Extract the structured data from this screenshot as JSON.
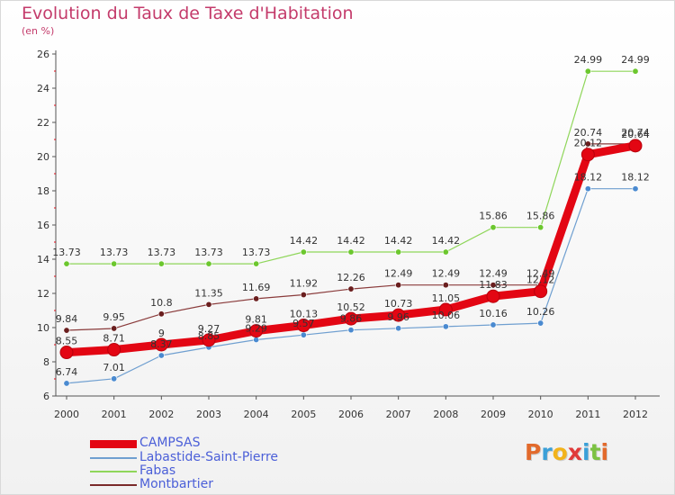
{
  "header": {
    "title": "Evolution du Taux de Taxe d'Habitation",
    "subtitle": "(en %)"
  },
  "logo": {
    "text": "Proxiti",
    "letters": [
      {
        "ch": "P",
        "color": "#e26a2c"
      },
      {
        "ch": "r",
        "color": "#3aa0d8"
      },
      {
        "ch": "o",
        "color": "#f2b31b"
      },
      {
        "ch": "x",
        "color": "#e03a3a"
      },
      {
        "ch": "i",
        "color": "#3aa0d8"
      },
      {
        "ch": "t",
        "color": "#7cc242"
      },
      {
        "ch": "i",
        "color": "#e26a2c"
      }
    ]
  },
  "chart_data": {
    "type": "line",
    "title": "Evolution du Taux de Taxe d'Habitation",
    "ylabel": "(en %)",
    "xlabel": "",
    "ylim": [
      6,
      26
    ],
    "y_ticks": [
      6,
      8,
      10,
      12,
      14,
      16,
      18,
      20,
      22,
      24,
      26
    ],
    "x": [
      "2000",
      "2001",
      "2002",
      "2003",
      "2004",
      "2005",
      "2006",
      "2007",
      "2008",
      "2009",
      "2010",
      "2011",
      "2012"
    ],
    "grid": false,
    "legend_position": "bottom-left",
    "series": [
      {
        "name": "CAMPSAS",
        "color": "#e30613",
        "values": [
          8.55,
          8.71,
          9,
          9.27,
          9.81,
          10.13,
          10.52,
          10.73,
          11.05,
          11.83,
          12.12,
          20.12,
          20.64
        ],
        "labels": [
          "8.55",
          "8.71",
          "9",
          "9.27",
          "9.81",
          "10.13",
          "10.52",
          "10.73",
          "11.05",
          "11.83",
          "12.12",
          "20.12",
          "20.64"
        ]
      },
      {
        "name": "Labastide-Saint-Pierre",
        "color": "#6f9fd0",
        "values": [
          6.74,
          7.01,
          8.37,
          8.85,
          9.29,
          9.57,
          9.86,
          9.96,
          10.06,
          10.16,
          10.26,
          18.12,
          18.12
        ],
        "labels": [
          "6.74",
          "7.01",
          "8.37",
          "8.85",
          "9.29",
          "9.57",
          "9.86",
          "9.96",
          "10.06",
          "10.16",
          "10.26",
          "18.12",
          "18.12"
        ]
      },
      {
        "name": "Fabas",
        "color": "#8fd65a",
        "values": [
          13.73,
          13.73,
          13.73,
          13.73,
          13.73,
          14.42,
          14.42,
          14.42,
          14.42,
          15.86,
          15.86,
          24.99,
          24.99
        ],
        "labels": [
          "13.73",
          "13.73",
          "13.73",
          "13.73",
          "13.73",
          "14.42",
          "14.42",
          "14.42",
          "14.42",
          "15.86",
          "15.86",
          "24.99",
          "24.99"
        ]
      },
      {
        "name": "Montbartier",
        "color": "#7a2a2a",
        "values": [
          9.84,
          9.95,
          10.8,
          11.35,
          11.69,
          11.92,
          12.26,
          12.49,
          12.49,
          12.49,
          12.49,
          20.74,
          20.74
        ],
        "labels": [
          "9.84",
          "9.95",
          "10.8",
          "11.35",
          "11.69",
          "11.92",
          "12.26",
          "12.49",
          "12.49",
          "12.49",
          "12.49",
          "20.74",
          "20.74"
        ]
      }
    ]
  }
}
